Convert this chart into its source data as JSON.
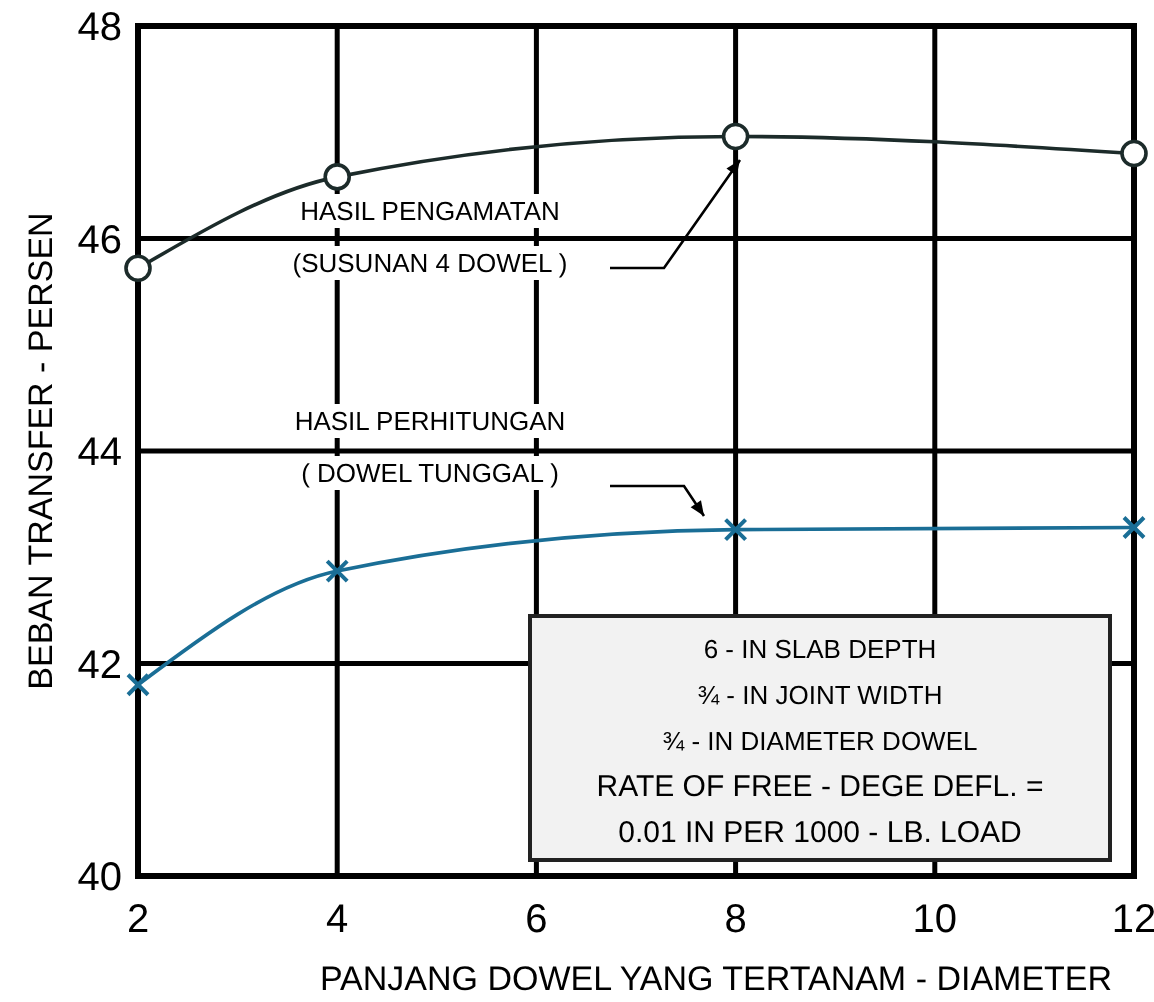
{
  "chart_data": {
    "type": "line",
    "xlabel": "PANJANG DOWEL YANG TERTANAM - DIAMETER",
    "ylabel": "BEBAN TRANSFER  -  PERSEN",
    "x": [
      2,
      4,
      8,
      12
    ],
    "series": [
      {
        "name": "HASIL PENGAMATAN (SUSUNAN 4 DOWEL )",
        "color": "#1c2b2a",
        "marker": "circle",
        "values": [
          45.72,
          46.58,
          46.96,
          46.8
        ]
      },
      {
        "name": "HASIL PERHITUNGAN ( DOWEL TUNGGAL )",
        "color": "#1a6e96",
        "marker": "cross",
        "values": [
          41.8,
          42.87,
          43.26,
          43.28
        ]
      }
    ],
    "annotations": [
      "6 - IN SLAB DEPTH",
      "¾ - IN JOINT WIDTH",
      "¾ - IN DIAMETER DOWEL",
      "RATE OF FREE - DEGE DEFL. =",
      "0.01 IN  PER 1000 - LB. LOAD"
    ],
    "xlim": [
      2,
      12
    ],
    "ylim": [
      40,
      48
    ],
    "xticks": [
      2,
      4,
      6,
      8,
      10,
      12
    ],
    "yticks": [
      40,
      42,
      44,
      46,
      48
    ],
    "grid": true,
    "line_style": "solid"
  }
}
